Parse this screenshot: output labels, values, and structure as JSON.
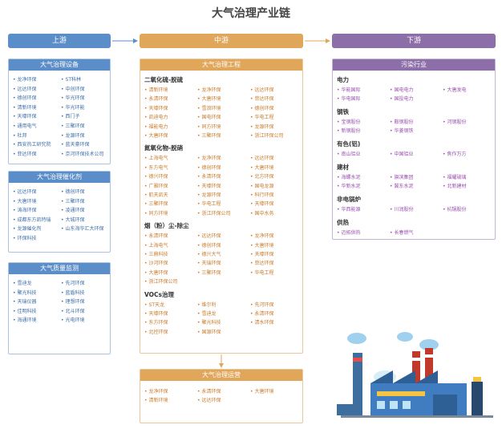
{
  "header": {
    "title": "大气治理产业链"
  },
  "stages": [
    "上游",
    "中游",
    "下游"
  ],
  "upstream": {
    "boxes": [
      {
        "title": "大气治理设备",
        "items": [
          "龙净环保",
          "ST科林",
          "远达环保",
          "中创环保",
          "德创环保",
          "华光环保",
          "清新环境",
          "华光环能",
          "天壕环保",
          "西门子",
          "通用电气",
          "三聚环保",
          "杜邦",
          "龙源环保",
          "西安热工研究院",
          "蓝天豪环保",
          "菲达环保",
          "京河环保技术公司"
        ]
      },
      {
        "title": "大气治理催化剂",
        "items": [
          "远达环保",
          "德创环保",
          "大唐环境",
          "三聚环保",
          "涛海环保",
          "凌通环保",
          "成都东方凯特瑞",
          "大城环保",
          "龙源催化剂",
          "山东海华汇大环保",
          "环保科技"
        ]
      },
      {
        "title": "大气质量监测",
        "items": [
          "雪迪龙",
          "先河环保",
          "聚光科技",
          "蓝盾科技",
          "天瑞仪器",
          "理想环保",
          "佳明科技",
          "北斗环保",
          "海通环境",
          "光电环境"
        ]
      }
    ]
  },
  "midstream": {
    "engineering": {
      "title": "大气治理工程",
      "sections": [
        {
          "title": "二氧化硫-脱硫",
          "items": [
            "清新环境",
            "龙净环保",
            "远达环保",
            "永清环保",
            "大唐环境",
            "菲达环保",
            "天壕环保",
            "雪浪环境",
            "德创环保",
            "凯迪电力",
            "国电环保",
            "华电工程",
            "福能电力",
            "同方环境",
            "龙源环保",
            "大唐环保",
            "三聚环保",
            "浙江环保公司"
          ]
        },
        {
          "title": "氮氧化物-脱硝",
          "items": [
            "上海电气",
            "龙净环保",
            "远达环保",
            "东方电气",
            "德创环保",
            "大唐环境",
            "德兴环保",
            "永清环保",
            "北方环保",
            "广雅环保",
            "天壕环保",
            "国电龙源",
            "航天凯天",
            "龙源环保",
            "科行环保",
            "三聚环保",
            "华电工程",
            "天壕环保",
            "同方环境",
            "浙江环保公司",
            "国中水务"
          ]
        },
        {
          "title": "烟（粉）尘-除尘",
          "items": [
            "永清环保",
            "远达环保",
            "龙净环保",
            "上海电气",
            "德创环保",
            "大唐环境",
            "三鼎科技",
            "德兴大气",
            "天壕环保",
            "沙河环保",
            "天瑞环保",
            "菲达环保",
            "大唐环保",
            "三聚环保",
            "华电工程",
            "浙江环保公司"
          ]
        },
        {
          "title": "VOCs治理",
          "items": [
            "ST天龙",
            "维尔利",
            "先河环保",
            "天壕环保",
            "雪迪龙",
            "永清环保",
            "东方环保",
            "聚光科技",
            "清水环保",
            "北控环保",
            "国源环保"
          ]
        }
      ]
    },
    "operation": {
      "title": "大气治理运营",
      "items": [
        "龙净环保",
        "永清环保",
        "大唐环境",
        "清新环境",
        "远达环保"
      ]
    }
  },
  "downstream": {
    "title": "污染行业",
    "sections": [
      {
        "title": "电力",
        "items": [
          "华能国际",
          "国电电力",
          "大唐发电",
          "华电国际",
          "国投电力"
        ]
      },
      {
        "title": "钢铁",
        "items": [
          "宝钢股份",
          "鞍钢股份",
          "河钢股份",
          "新钢股份",
          "华菱钢铁"
        ]
      },
      {
        "title": "有色(铝)",
        "items": [
          "南山铝业",
          "中国铝业",
          "焦作万方"
        ]
      },
      {
        "title": "建材",
        "items": [
          "海螺水泥",
          "旗滨集团",
          "福耀玻璃",
          "华新水泥",
          "冀东水泥",
          "北新建材"
        ]
      },
      {
        "title": "非电锅炉",
        "items": [
          "华西能源",
          "川润股份",
          "杭锅股份"
        ]
      },
      {
        "title": "供热",
        "items": [
          "迈拓供热",
          "长春燃气"
        ]
      }
    ]
  }
}
